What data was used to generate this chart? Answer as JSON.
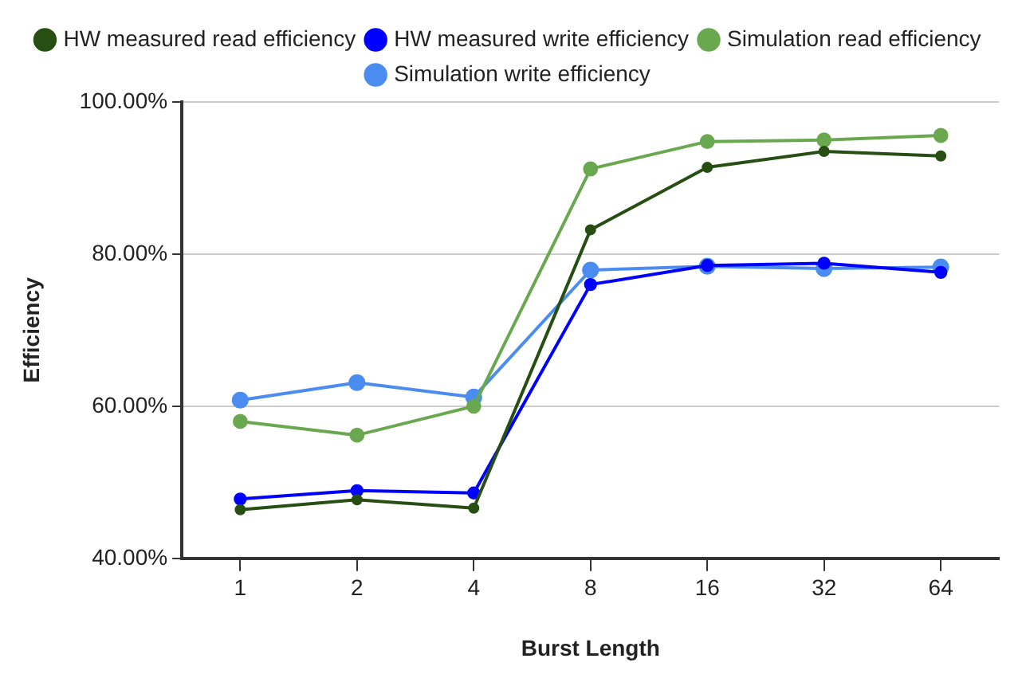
{
  "chart_data": {
    "type": "line",
    "xlabel": "Burst Length",
    "ylabel": "Efficiency",
    "categories": [
      "1",
      "2",
      "4",
      "8",
      "16",
      "32",
      "64"
    ],
    "series": [
      {
        "name": "Simulation write efficiency",
        "color": "#4a8cf0",
        "values": [
          60.8,
          63.1,
          61.2,
          77.9,
          78.4,
          78.1,
          78.3
        ]
      },
      {
        "name": "Simulation read efficiency",
        "color": "#6aa84f",
        "values": [
          58.0,
          56.2,
          60.0,
          91.2,
          94.8,
          95.0,
          95.6
        ]
      },
      {
        "name": "HW measured write efficiency",
        "color": "#0000ff",
        "values": [
          47.8,
          48.9,
          48.6,
          76.0,
          78.5,
          78.8,
          77.6
        ]
      },
      {
        "name": "HW measured read efficiency",
        "color": "#274e13",
        "values": [
          46.4,
          47.7,
          46.6,
          83.2,
          91.4,
          93.5,
          92.9
        ]
      }
    ],
    "ylim": [
      40,
      100
    ],
    "yticks": [
      {
        "value": 40,
        "label": "40.00%"
      },
      {
        "value": 60,
        "label": "60.00%"
      },
      {
        "value": 80,
        "label": "80.00%"
      },
      {
        "value": 100,
        "label": "100.00%"
      }
    ],
    "grid": "y",
    "legend": "top",
    "marker": "circle",
    "line_style": "solid"
  }
}
